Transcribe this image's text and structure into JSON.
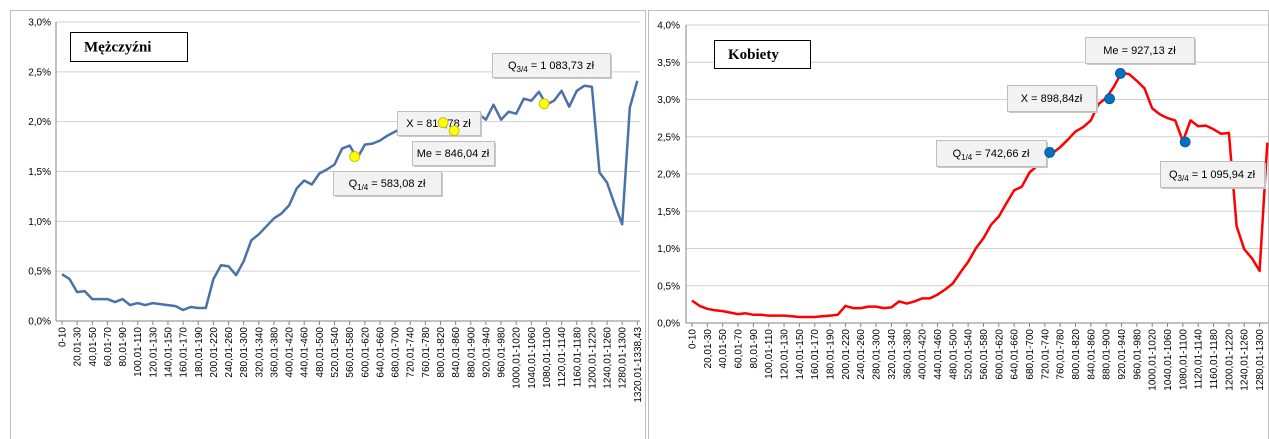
{
  "chart_data": [
    {
      "type": "line",
      "title": "Mężczyźni",
      "color": "#4a72a8",
      "marker_color": "#ffff00",
      "categories": [
        "0-10",
        null,
        "20,01-30",
        null,
        "40,01-50",
        null,
        "60,01-70",
        null,
        "80,01-90",
        null,
        "100,01-110",
        null,
        "120,01-130",
        null,
        "140,01-150",
        null,
        "160,01-170",
        null,
        "180,01-190",
        null,
        "200,01-220",
        null,
        "240,01-260",
        null,
        "280,01-300",
        null,
        "320,01-340",
        null,
        "360,01-380",
        null,
        "400,01-420",
        null,
        "440,01-460",
        null,
        "480,01-500",
        null,
        "520,01-540",
        null,
        "560,01-580",
        null,
        "600,01-620",
        null,
        "640,01-660",
        null,
        "680,01-700",
        null,
        "720,01-740",
        null,
        "760,01-780",
        null,
        "800,01-820",
        null,
        "840,01-860",
        null,
        "880,01-900",
        null,
        "920,01-940",
        null,
        "960,01-980",
        null,
        "1000,01-1020",
        null,
        "1040,01-1060",
        null,
        "1080,01-1100",
        null,
        "1120,01-1140",
        null,
        "1160,01-1180",
        null,
        "1200,01-1220",
        null,
        "1240,01-1260",
        null,
        "1280,01-1300",
        null,
        "1320,01-1338,43"
      ],
      "values": [
        0.47,
        0.42,
        0.29,
        0.3,
        0.22,
        0.22,
        0.22,
        0.19,
        0.22,
        0.16,
        0.18,
        0.16,
        0.18,
        0.17,
        0.16,
        0.15,
        0.11,
        0.14,
        0.13,
        0.13,
        0.42,
        0.56,
        0.55,
        0.46,
        0.6,
        0.81,
        0.87,
        0.95,
        1.03,
        1.08,
        1.16,
        1.33,
        1.41,
        1.37,
        1.48,
        1.52,
        1.57,
        1.73,
        1.76,
        1.63,
        1.77,
        1.78,
        1.81,
        1.86,
        1.9,
        1.94,
        1.95,
        2.0,
        2.07,
        1.99,
        2.0,
        1.91,
        1.9,
        2.01,
        2.01,
        2.08,
        2.02,
        2.17,
        2.02,
        2.1,
        2.08,
        2.23,
        2.21,
        2.3,
        2.17,
        2.21,
        2.31,
        2.15,
        2.31,
        2.36,
        2.35,
        1.49,
        1.39,
        1.17,
        0.97,
        2.14,
        2.41
      ],
      "ylim": [
        0,
        3
      ],
      "yticks": [
        {
          "value": 0,
          "label": "0,0%"
        },
        {
          "value": 0.5,
          "label": "0,5%"
        },
        {
          "value": 1,
          "label": "1,0%"
        },
        {
          "value": 1.5,
          "label": "1,5%"
        },
        {
          "value": 2,
          "label": "2,0%"
        },
        {
          "value": 2.5,
          "label": "2,5%"
        },
        {
          "value": 3,
          "label": "3,0%"
        }
      ],
      "grid": true,
      "annotations": [
        {
          "text": [
            "Q",
            "1/4",
            " = 583,08 zł"
          ],
          "x": 583.08,
          "y": 1.65
        },
        {
          "text": [
            "X = 816,78 zł"
          ],
          "x": 816.78,
          "y": 1.99
        },
        {
          "text": [
            "Me = 846,04 zł"
          ],
          "x": 846.04,
          "y": 1.91
        },
        {
          "text": [
            "Q",
            "3/4",
            " = 1 083,73 zł"
          ],
          "x": 1083.73,
          "y": 2.18
        }
      ]
    },
    {
      "type": "line",
      "title": "Kobiety",
      "color": "#ff0000",
      "marker_color": "#0070c0",
      "categories": [
        "0-10",
        null,
        "20,01-30",
        null,
        "40,01-50",
        null,
        "60,01-70",
        null,
        "80,01-90",
        null,
        "100,01-110",
        null,
        "120,01-130",
        null,
        "140,01-150",
        null,
        "160,01-170",
        null,
        "180,01-190",
        null,
        "200,01-220",
        null,
        "240,01-260",
        null,
        "280,01-300",
        null,
        "320,01-340",
        null,
        "360,01-380",
        null,
        "400,01-420",
        null,
        "440,01-460",
        null,
        "480,01-500",
        null,
        "520,01-540",
        null,
        "560,01-580",
        null,
        "600,01-620",
        null,
        "640,01-660",
        null,
        "680,01-700",
        null,
        "720,01-740",
        null,
        "760,01-780",
        null,
        "800,01-820",
        null,
        "840,01-860",
        null,
        "880,01-900",
        null,
        "920,01-940",
        null,
        "960,01-980",
        null,
        "1000,01-1020",
        null,
        "1040,01-1060",
        null,
        "1080,01-1100",
        null,
        "1120,01-1140",
        null,
        "1160,01-1180",
        null,
        "1200,01-1220",
        null,
        "1240,01-1260",
        null,
        "1280,01-1300",
        null
      ],
      "values": [
        0.3,
        0.23,
        0.19,
        0.17,
        0.16,
        0.14,
        0.12,
        0.13,
        0.11,
        0.11,
        0.1,
        0.1,
        0.1,
        0.09,
        0.08,
        0.08,
        0.08,
        0.09,
        0.1,
        0.11,
        0.23,
        0.2,
        0.2,
        0.22,
        0.22,
        0.2,
        0.21,
        0.29,
        0.26,
        0.29,
        0.33,
        0.33,
        0.38,
        0.45,
        0.53,
        0.68,
        0.82,
        1.0,
        1.14,
        1.32,
        1.43,
        1.61,
        1.78,
        1.83,
        2.02,
        2.11,
        2.19,
        2.28,
        2.36,
        2.46,
        2.57,
        2.63,
        2.72,
        2.94,
        3.02,
        3.17,
        3.36,
        3.34,
        3.25,
        3.15,
        2.88,
        2.8,
        2.75,
        2.72,
        2.44,
        2.72,
        2.64,
        2.65,
        2.6,
        2.54,
        2.55,
        1.3,
        0.99,
        0.87,
        0.7,
        2.42
      ],
      "ylim": [
        0,
        4
      ],
      "yticks": [
        {
          "value": 0,
          "label": "0,0%"
        },
        {
          "value": 0.5,
          "label": "0,5%"
        },
        {
          "value": 1,
          "label": "1,0%"
        },
        {
          "value": 1.5,
          "label": "1,5%"
        },
        {
          "value": 2,
          "label": "2,0%"
        },
        {
          "value": 2.5,
          "label": "2,5%"
        },
        {
          "value": 3,
          "label": "3,0%"
        },
        {
          "value": 3.5,
          "label": "3,5%"
        },
        {
          "value": 4,
          "label": "4,0%"
        }
      ],
      "grid": true,
      "annotations": [
        {
          "text": [
            "Q",
            "1/4",
            " = 742,66 zł"
          ],
          "x": 742.66,
          "y": 2.29
        },
        {
          "text": [
            "X = 898,84zł"
          ],
          "x": 898.84,
          "y": 3.01
        },
        {
          "text": [
            "Me = 927,13 zł"
          ],
          "x": 927.13,
          "y": 3.35
        },
        {
          "text": [
            "Q",
            "3/4",
            " = 1 095,94 zł"
          ],
          "x": 1095.94,
          "y": 2.43
        }
      ]
    }
  ]
}
